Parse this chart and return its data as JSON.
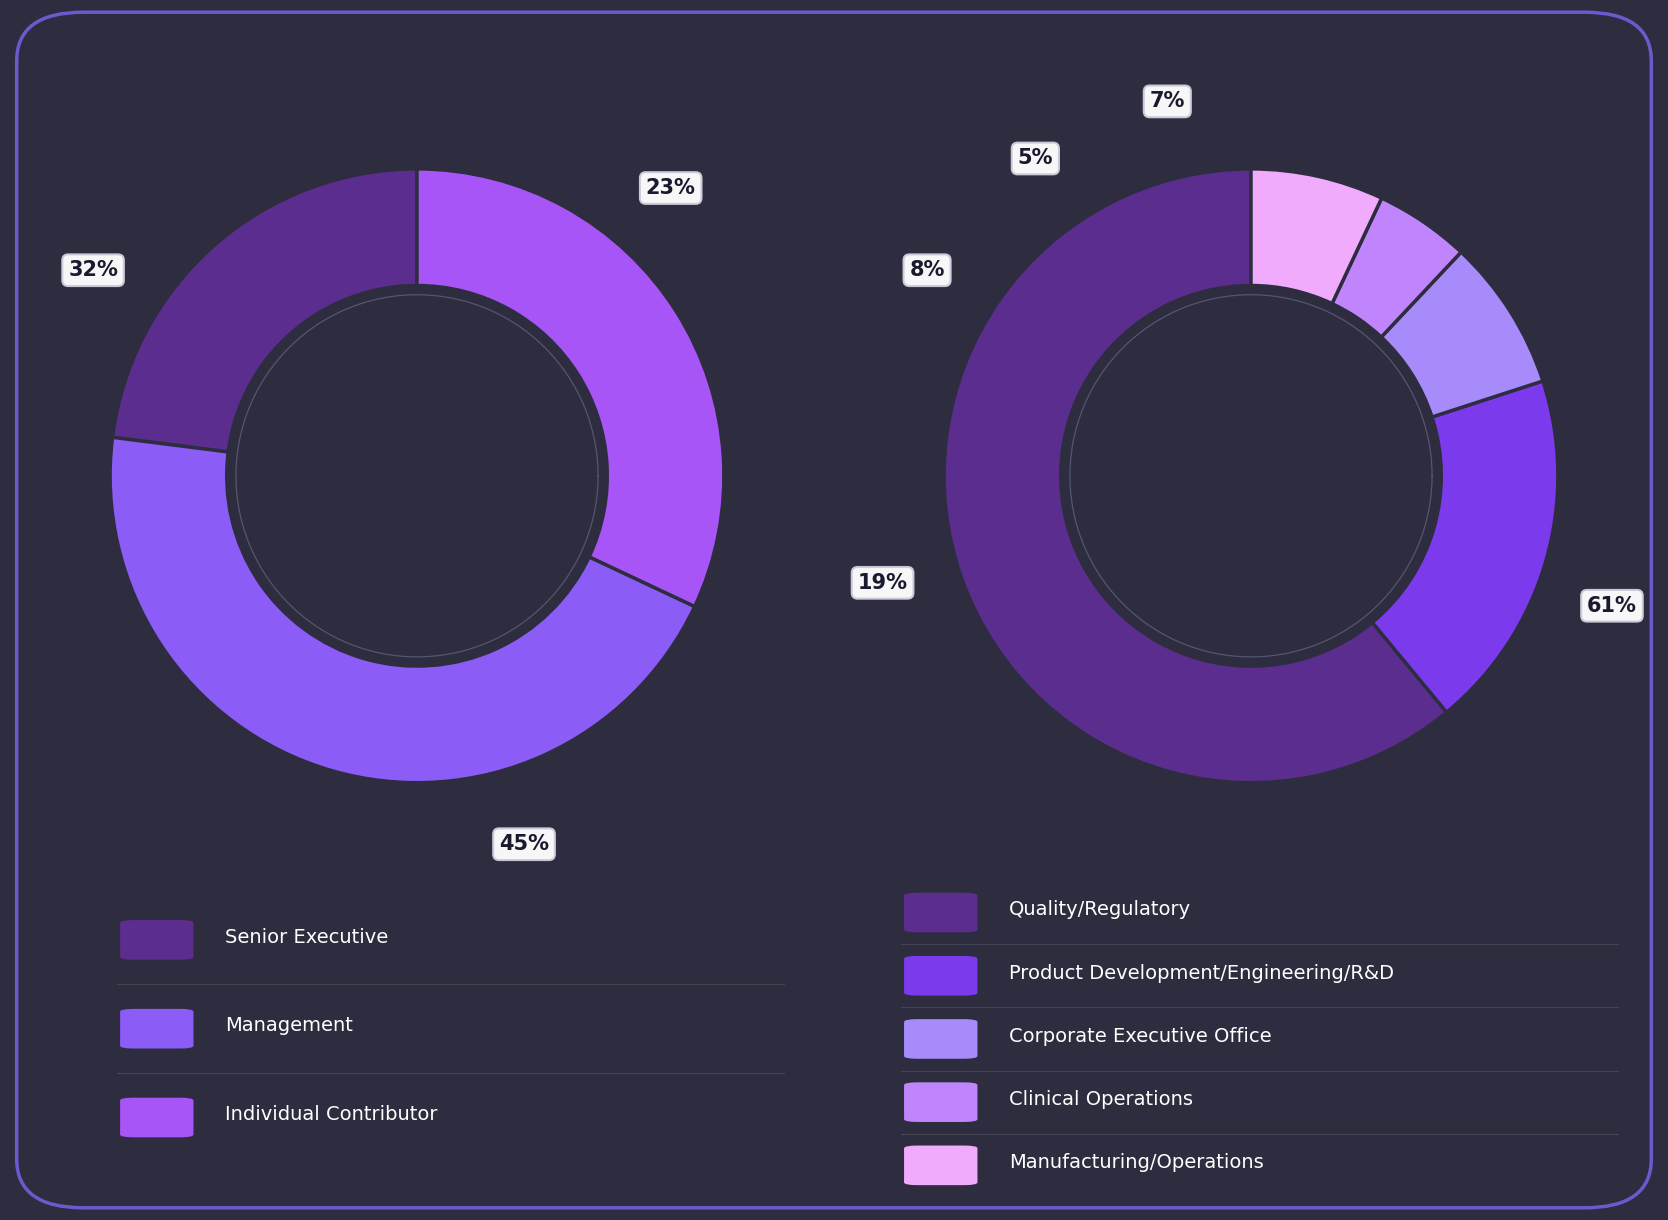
{
  "background_color": "#2d2d3f",
  "border_color": "#6a5acd",
  "left_chart": {
    "values": [
      23,
      45,
      32
    ],
    "colors": [
      "#5b2d8e",
      "#8b5cf6",
      "#a855f7"
    ],
    "labels": [
      "23%",
      "45%",
      "32%"
    ]
  },
  "right_chart": {
    "values": [
      61,
      19,
      8,
      5,
      7
    ],
    "colors": [
      "#5b2d8e",
      "#7c3aed",
      "#a78bfa",
      "#c084fc",
      "#f0abfc"
    ],
    "labels": [
      "61%",
      "19%",
      "8%",
      "5%",
      "7%"
    ]
  },
  "legend_left": [
    {
      "label": "Senior Executive",
      "color": "#5b2d8e"
    },
    {
      "label": "Management",
      "color": "#8b5cf6"
    },
    {
      "label": "Individual Contributor",
      "color": "#a855f7"
    }
  ],
  "legend_right": [
    {
      "label": "Quality/Regulatory",
      "color": "#5b2d8e"
    },
    {
      "label": "Product Development/Engineering/R&D",
      "color": "#7c3aed"
    },
    {
      "label": "Corporate Executive Office",
      "color": "#a78bfa"
    },
    {
      "label": "Clinical Operations",
      "color": "#c084fc"
    },
    {
      "label": "Manufacturing/Operations",
      "color": "#f0abfc"
    }
  ]
}
